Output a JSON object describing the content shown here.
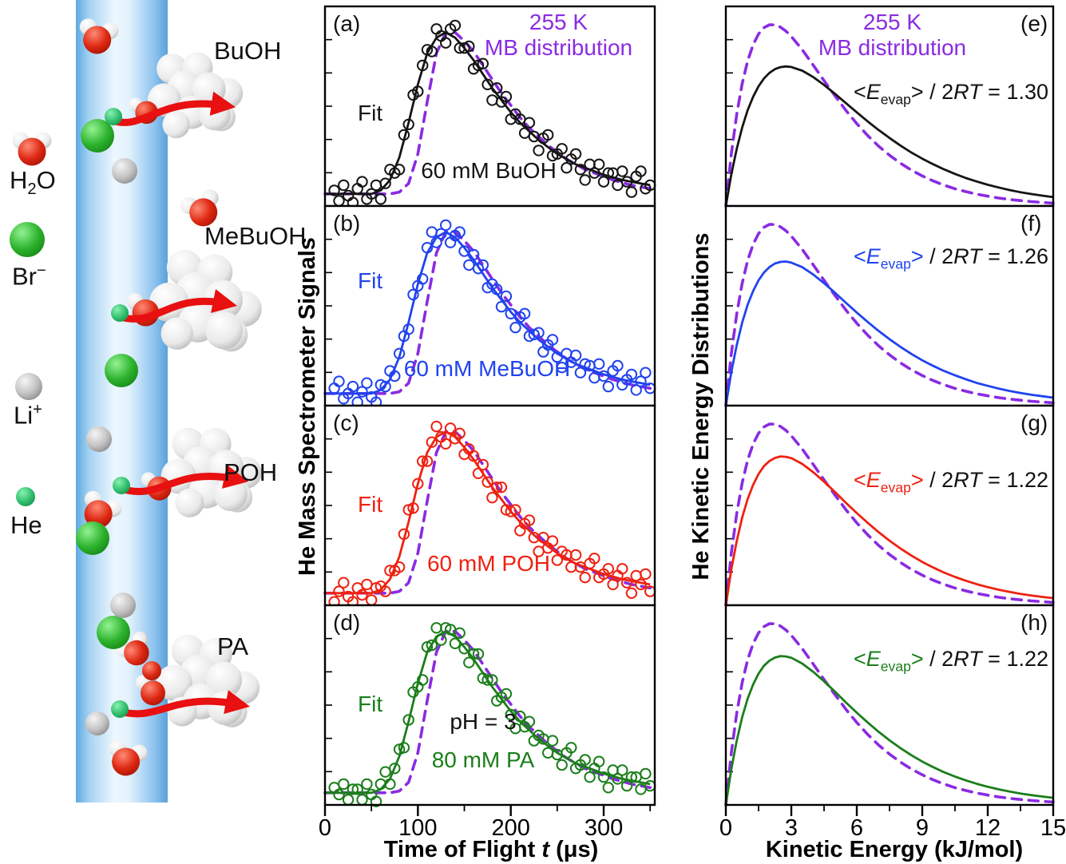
{
  "colors": {
    "black": "#151515",
    "blue": "#2143ee",
    "red": "#ee2211",
    "green": "#1b7e1b",
    "purple": "#8a2be2",
    "axis": "#000000"
  },
  "schematic": {
    "molecule_labels": [
      {
        "id": "buoh",
        "text": "BuOH"
      },
      {
        "id": "mebuoh",
        "text": "MeBuOH"
      },
      {
        "id": "poh",
        "text": "POH"
      },
      {
        "id": "pa",
        "text": "PA"
      }
    ],
    "legend": [
      {
        "id": "h2o",
        "pre": "H",
        "sub": "2",
        "post": "O"
      },
      {
        "id": "br",
        "pre": "Br",
        "sup": "−"
      },
      {
        "id": "li",
        "pre": "Li",
        "sup": "+"
      },
      {
        "id": "he",
        "pre": "He"
      }
    ],
    "element_colors": {
      "jet": "#9fcdf0",
      "arrow": "#e81010",
      "water_oxygen": "#dd2812",
      "bromide": "#2db32d",
      "lithium": "#c2c2c2",
      "helium": "#32c06e"
    }
  },
  "chart_data": [
    {
      "type": "scatter",
      "xlabel": "Time of Flight t (μs)",
      "xlabel_parts": {
        "pre": "Time of Flight ",
        "it": "t",
        "post": " (μs)"
      },
      "ylabel": "He Mass Spectrometer Signals",
      "xlim": [
        0,
        355
      ],
      "ylim": [
        0,
        1.15
      ],
      "xticks": [
        0,
        100,
        200,
        300
      ],
      "xtick_minor_step": 50,
      "mb_label": [
        "255 K",
        "MB distribution"
      ],
      "mb_color": "#8a2be2",
      "t": [
        0,
        10,
        20,
        30,
        40,
        50,
        60,
        70,
        80,
        90,
        100,
        110,
        120,
        130,
        140,
        150,
        160,
        170,
        180,
        190,
        200,
        210,
        220,
        230,
        240,
        250,
        260,
        270,
        280,
        290,
        300,
        310,
        320,
        330,
        340,
        350
      ],
      "fit_shape": [
        0.07,
        0.07,
        0.07,
        0.07,
        0.07,
        0.07,
        0.09,
        0.15,
        0.28,
        0.48,
        0.7,
        0.88,
        0.97,
        1.0,
        0.97,
        0.91,
        0.84,
        0.76,
        0.68,
        0.61,
        0.54,
        0.48,
        0.43,
        0.38,
        0.34,
        0.3,
        0.27,
        0.24,
        0.22,
        0.2,
        0.18,
        0.165,
        0.15,
        0.14,
        0.13,
        0.12
      ],
      "mb_shape": [
        0.07,
        0.07,
        0.07,
        0.07,
        0.07,
        0.07,
        0.07,
        0.07,
        0.08,
        0.13,
        0.3,
        0.6,
        0.88,
        1.0,
        1.0,
        0.95,
        0.89,
        0.81,
        0.73,
        0.65,
        0.58,
        0.51,
        0.45,
        0.4,
        0.35,
        0.31,
        0.27,
        0.24,
        0.21,
        0.19,
        0.17,
        0.15,
        0.135,
        0.12,
        0.11,
        0.1
      ],
      "scatter_t": [
        10,
        15,
        20,
        25,
        30,
        35,
        40,
        45,
        50,
        55,
        60,
        65,
        70,
        75,
        80,
        85,
        90,
        95,
        100,
        105,
        110,
        115,
        120,
        125,
        130,
        135,
        140,
        145,
        150,
        155,
        160,
        165,
        170,
        175,
        180,
        185,
        190,
        195,
        200,
        205,
        210,
        215,
        220,
        225,
        230,
        235,
        240,
        245,
        250,
        255,
        260,
        265,
        270,
        275,
        280,
        285,
        290,
        295,
        300,
        305,
        310,
        315,
        320,
        325,
        330,
        335,
        340,
        345,
        350
      ],
      "panels": [
        {
          "letter": "(a)",
          "fit_label": "Fit",
          "sample_label": "60 mM BuOH",
          "color": "#151515",
          "scatter": [
            0.09,
            0.03,
            0.12,
            0.06,
            0.02,
            0.1,
            0.14,
            0.04,
            0.07,
            0.12,
            0.04,
            0.13,
            0.21,
            0.19,
            0.21,
            0.41,
            0.47,
            0.64,
            0.66,
            0.81,
            0.9,
            0.89,
            1.02,
            0.98,
            0.94,
            1.02,
            1.04,
            0.91,
            0.91,
            0.92,
            0.79,
            0.81,
            0.82,
            0.7,
            0.61,
            0.68,
            0.6,
            0.63,
            0.5,
            0.53,
            0.5,
            0.42,
            0.48,
            0.4,
            0.32,
            0.39,
            0.41,
            0.29,
            0.3,
            0.33,
            0.22,
            0.27,
            0.3,
            0.21,
            0.15,
            0.24,
            0.19,
            0.24,
            0.14,
            0.19,
            0.19,
            0.12,
            0.2,
            0.14,
            0.08,
            0.17,
            0.2,
            0.1,
            0.12
          ]
        },
        {
          "letter": "(b)",
          "fit_label": "Fit",
          "sample_label": "60 mM MeBuOH",
          "color": "#2143ee",
          "scatter": [
            0.1,
            0.14,
            0.04,
            0.07,
            0.11,
            0.02,
            0.08,
            0.13,
            0.05,
            0.02,
            0.12,
            0.11,
            0.2,
            0.17,
            0.3,
            0.4,
            0.44,
            0.64,
            0.69,
            0.73,
            0.91,
            1.0,
            0.94,
            0.99,
            1.04,
            0.94,
            0.98,
            1.0,
            0.89,
            0.81,
            0.87,
            0.79,
            0.81,
            0.68,
            0.7,
            0.67,
            0.57,
            0.63,
            0.53,
            0.45,
            0.51,
            0.53,
            0.4,
            0.41,
            0.42,
            0.31,
            0.35,
            0.38,
            0.28,
            0.22,
            0.3,
            0.25,
            0.29,
            0.19,
            0.24,
            0.23,
            0.16,
            0.24,
            0.17,
            0.11,
            0.2,
            0.23,
            0.12,
            0.15,
            0.18,
            0.09,
            0.14,
            0.19,
            0.1
          ]
        },
        {
          "letter": "(c)",
          "fit_label": "Fit",
          "sample_label": "60 mM POH",
          "color": "#ee2211",
          "scatter": [
            0.02,
            0.08,
            0.13,
            0.05,
            0.02,
            0.1,
            0.06,
            0.12,
            0.03,
            0.1,
            0.11,
            0.08,
            0.2,
            0.2,
            0.22,
            0.41,
            0.55,
            0.56,
            0.7,
            0.83,
            0.83,
            0.94,
            1.03,
            0.97,
            0.93,
            1.02,
            0.96,
            0.99,
            0.87,
            0.9,
            0.86,
            0.76,
            0.81,
            0.71,
            0.62,
            0.68,
            0.68,
            0.55,
            0.54,
            0.55,
            0.43,
            0.47,
            0.49,
            0.39,
            0.31,
            0.39,
            0.33,
            0.37,
            0.26,
            0.31,
            0.29,
            0.22,
            0.29,
            0.22,
            0.16,
            0.24,
            0.27,
            0.16,
            0.18,
            0.21,
            0.12,
            0.17,
            0.21,
            0.13,
            0.07,
            0.17,
            0.12,
            0.18,
            0.08
          ]
        },
        {
          "letter": "(d)",
          "fit_label": "Fit",
          "sample_label": "80 mM PA",
          "ph_label": "pH = 3",
          "color": "#1b7e1b",
          "scatter": [
            0.1,
            0.06,
            0.12,
            0.03,
            0.09,
            0.09,
            0.03,
            0.12,
            0.06,
            0.02,
            0.12,
            0.19,
            0.12,
            0.21,
            0.32,
            0.33,
            0.49,
            0.65,
            0.68,
            0.72,
            0.91,
            0.92,
            1.02,
            0.95,
            1.02,
            1.01,
            0.93,
            0.99,
            0.9,
            0.82,
            0.87,
            0.87,
            0.73,
            0.72,
            0.72,
            0.6,
            0.62,
            0.64,
            0.52,
            0.44,
            0.51,
            0.45,
            0.48,
            0.37,
            0.4,
            0.38,
            0.3,
            0.37,
            0.29,
            0.23,
            0.3,
            0.33,
            0.21,
            0.23,
            0.26,
            0.16,
            0.21,
            0.25,
            0.16,
            0.1,
            0.2,
            0.15,
            0.2,
            0.11,
            0.16,
            0.16,
            0.09,
            0.18,
            0.11
          ]
        }
      ]
    },
    {
      "type": "line",
      "xlabel": "Kinetic Energy (kJ/mol)",
      "ylabel": "He Kinetic Energy Distributions",
      "xlim": [
        0,
        15
      ],
      "ylim": [
        0,
        1.1
      ],
      "xticks": [
        0,
        3,
        6,
        9,
        12,
        15
      ],
      "xtick_minor_step": 1.5,
      "mb_label": [
        "255 K",
        "MB distribution"
      ],
      "mb_color": "#8a2be2",
      "E": [
        0,
        0.25,
        0.5,
        0.75,
        1,
        1.25,
        1.5,
        1.75,
        2,
        2.25,
        2.5,
        2.75,
        3,
        3.5,
        4,
        4.5,
        5,
        5.5,
        6,
        6.5,
        7,
        7.5,
        8,
        8.5,
        9,
        9.5,
        10,
        10.5,
        11,
        11.5,
        12,
        12.5,
        13,
        13.5,
        14,
        14.5,
        15
      ],
      "mb": [
        0,
        0.285,
        0.507,
        0.675,
        0.8,
        0.889,
        0.948,
        0.983,
        0.999,
        0.998,
        0.986,
        0.964,
        0.934,
        0.861,
        0.777,
        0.691,
        0.607,
        0.527,
        0.454,
        0.388,
        0.33,
        0.28,
        0.236,
        0.198,
        0.166,
        0.138,
        0.115,
        0.095,
        0.079,
        0.065,
        0.054,
        0.044,
        0.036,
        0.03,
        0.024,
        0.02,
        0.016
      ],
      "panels": [
        {
          "letter": "(e)",
          "color": "#151515",
          "ratio": "1.30",
          "label_parts": {
            "bra": "<",
            "sym": "E",
            "sub": "evap",
            "ket": ">",
            "mid": " / 2",
            "rt": "RT",
            "eq": " = ",
            "val": "1.30"
          },
          "curve": [
            0,
            0.173,
            0.316,
            0.433,
            0.528,
            0.602,
            0.66,
            0.703,
            0.734,
            0.754,
            0.765,
            0.769,
            0.766,
            0.746,
            0.711,
            0.667,
            0.618,
            0.567,
            0.516,
            0.466,
            0.419,
            0.375,
            0.333,
            0.295,
            0.261,
            0.23,
            0.202,
            0.177,
            0.154,
            0.135,
            0.117,
            0.102,
            0.088,
            0.076,
            0.066,
            0.057,
            0.049
          ]
        },
        {
          "letter": "(f)",
          "color": "#2143ee",
          "ratio": "1.26",
          "label_parts": {
            "bra": "<",
            "sym": "E",
            "sub": "evap",
            "ket": ">",
            "mid": " / 2",
            "rt": "RT",
            "eq": " = ",
            "val": "1.26"
          },
          "curve": [
            0,
            0.184,
            0.335,
            0.458,
            0.556,
            0.632,
            0.691,
            0.734,
            0.764,
            0.783,
            0.792,
            0.794,
            0.788,
            0.763,
            0.723,
            0.675,
            0.622,
            0.567,
            0.513,
            0.461,
            0.412,
            0.366,
            0.324,
            0.285,
            0.25,
            0.219,
            0.191,
            0.167,
            0.145,
            0.125,
            0.109,
            0.094,
            0.081,
            0.07,
            0.06,
            0.052,
            0.044
          ]
        },
        {
          "letter": "(g)",
          "color": "#ee2211",
          "ratio": "1.22",
          "label_parts": {
            "bra": "<",
            "sym": "E",
            "sub": "evap",
            "ket": ">",
            "mid": " / 2",
            "rt": "RT",
            "eq": " = ",
            "val": "1.22"
          },
          "curve": [
            0,
            0.196,
            0.355,
            0.484,
            0.585,
            0.664,
            0.724,
            0.767,
            0.795,
            0.812,
            0.82,
            0.818,
            0.811,
            0.779,
            0.734,
            0.681,
            0.624,
            0.565,
            0.508,
            0.454,
            0.403,
            0.356,
            0.313,
            0.274,
            0.239,
            0.208,
            0.18,
            0.156,
            0.135,
            0.116,
            0.1,
            0.086,
            0.074,
            0.063,
            0.054,
            0.046,
            0.039
          ]
        },
        {
          "letter": "(h)",
          "color": "#1b7e1b",
          "ratio": "1.22",
          "label_parts": {
            "bra": "<",
            "sym": "E",
            "sub": "evap",
            "ket": ">",
            "mid": " / 2",
            "rt": "RT",
            "eq": " = ",
            "val": "1.22"
          },
          "curve": [
            0,
            0.196,
            0.355,
            0.484,
            0.585,
            0.664,
            0.724,
            0.767,
            0.795,
            0.812,
            0.82,
            0.818,
            0.811,
            0.779,
            0.734,
            0.681,
            0.624,
            0.565,
            0.508,
            0.454,
            0.403,
            0.356,
            0.313,
            0.274,
            0.239,
            0.208,
            0.18,
            0.156,
            0.135,
            0.116,
            0.1,
            0.086,
            0.074,
            0.063,
            0.054,
            0.046,
            0.039
          ]
        }
      ]
    }
  ]
}
